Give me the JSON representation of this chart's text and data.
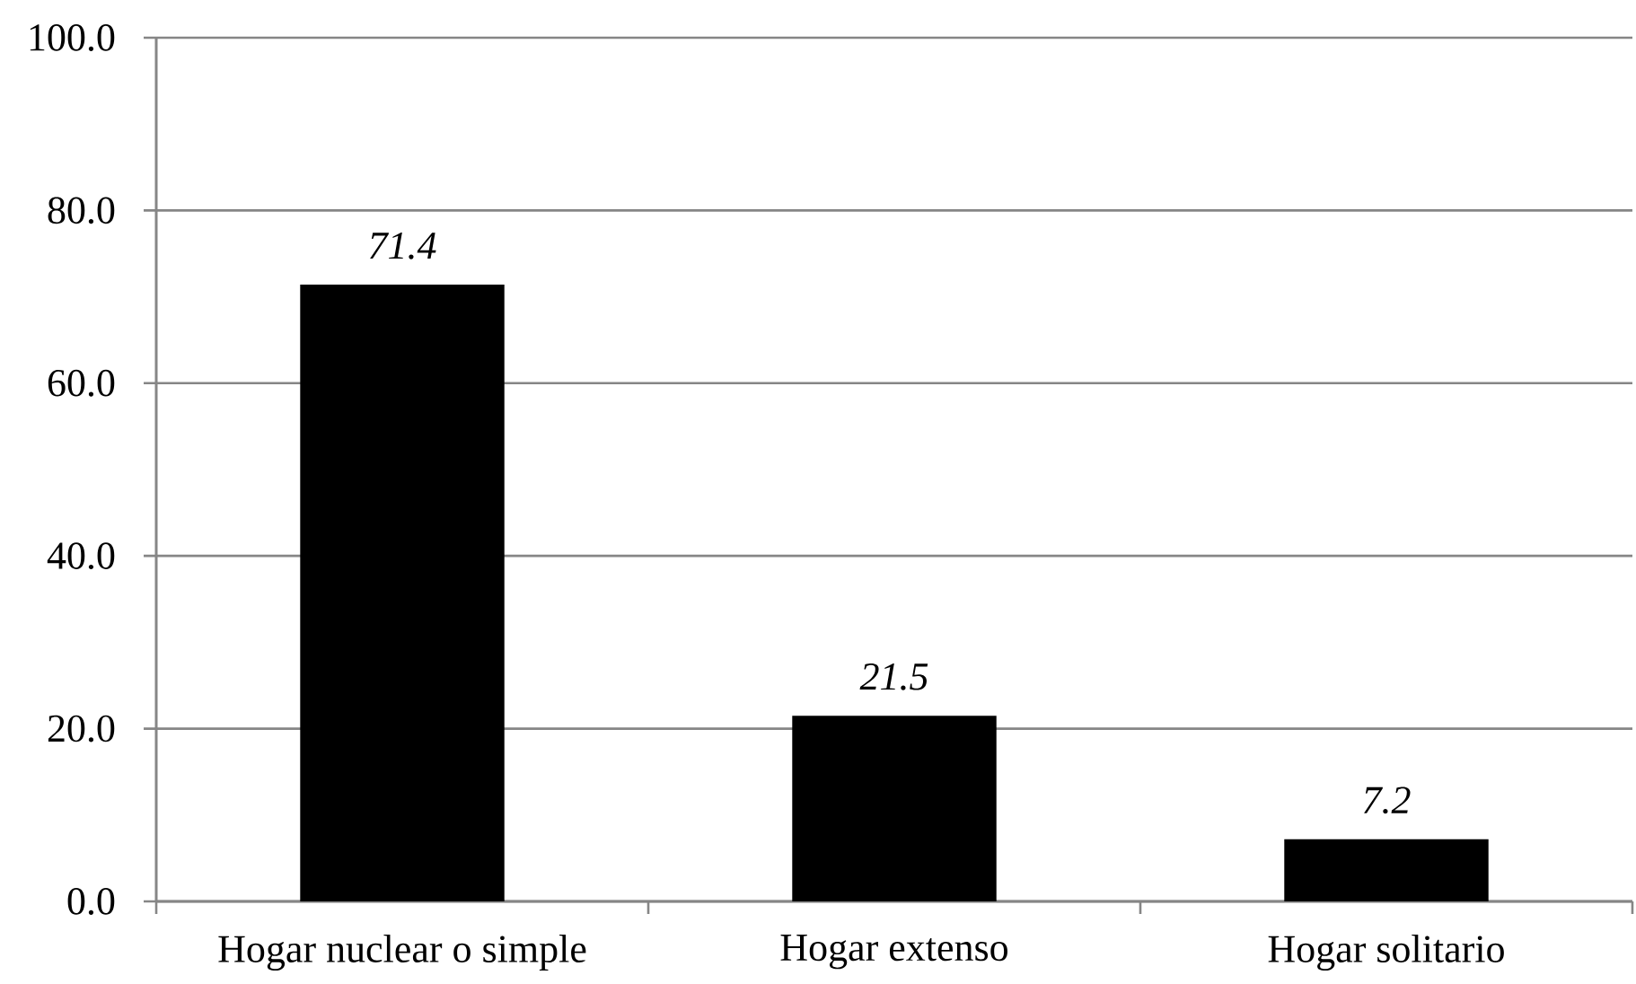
{
  "chart_data": {
    "type": "bar",
    "categories": [
      "Hogar nuclear o simple",
      "Hogar extenso",
      "Hogar solitario"
    ],
    "values": [
      71.4,
      21.5,
      7.2
    ],
    "color": "#000000",
    "ylim": [
      0,
      100
    ],
    "yticks": [
      {
        "value": 0,
        "label": "0.0"
      },
      {
        "value": 20,
        "label": "20.0"
      },
      {
        "value": 40,
        "label": "40.0"
      },
      {
        "value": 60,
        "label": "60.0"
      },
      {
        "value": 80,
        "label": "80.0"
      },
      {
        "value": 100,
        "label": "100.0"
      }
    ],
    "grid": "y",
    "data_labels": true
  }
}
